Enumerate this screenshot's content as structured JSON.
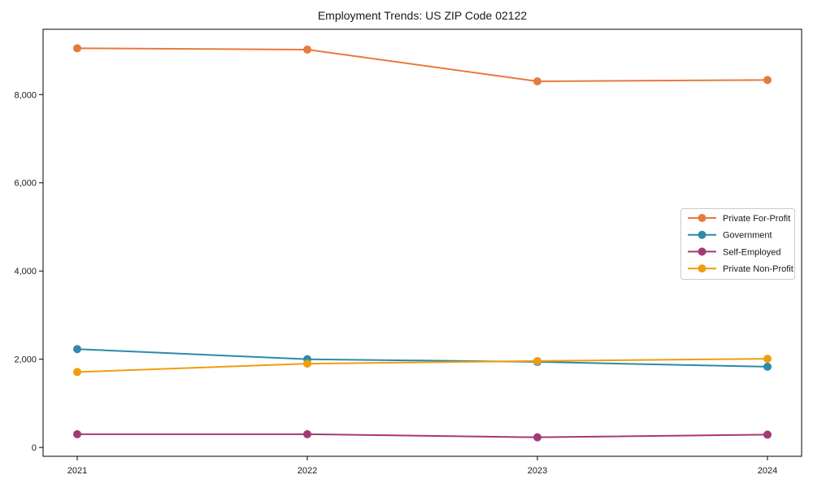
{
  "chart_data": {
    "type": "line",
    "title": "Employment Trends: US ZIP Code 02122",
    "xlabel": "",
    "ylabel": "",
    "categories": [
      "2021",
      "2022",
      "2023",
      "2024"
    ],
    "series": [
      {
        "name": "Private For-Profit",
        "color": "#e87a3d",
        "values": [
          9050,
          9020,
          8300,
          8330
        ]
      },
      {
        "name": "Government",
        "color": "#2e8aa8",
        "values": [
          2230,
          2000,
          1940,
          1830
        ]
      },
      {
        "name": "Self-Employed",
        "color": "#a33a73",
        "values": [
          300,
          300,
          230,
          290
        ]
      },
      {
        "name": "Private Non-Profit",
        "color": "#f09d0e",
        "values": [
          1710,
          1900,
          1960,
          2010
        ]
      }
    ],
    "ylim": [
      -200,
      9480
    ],
    "yticks": [
      {
        "value": 0,
        "label": "0"
      },
      {
        "value": 2000,
        "label": "2,000"
      },
      {
        "value": 4000,
        "label": "4,000"
      },
      {
        "value": 6000,
        "label": "6,000"
      },
      {
        "value": 8000,
        "label": "8,000"
      }
    ],
    "grid": false,
    "legend_position": "right-middle",
    "marker": "circle",
    "colors": {
      "spine": "#000000",
      "text": "#1a1a1a",
      "legend_border": "#cccccc",
      "legend_bg": "#ffffff"
    }
  }
}
